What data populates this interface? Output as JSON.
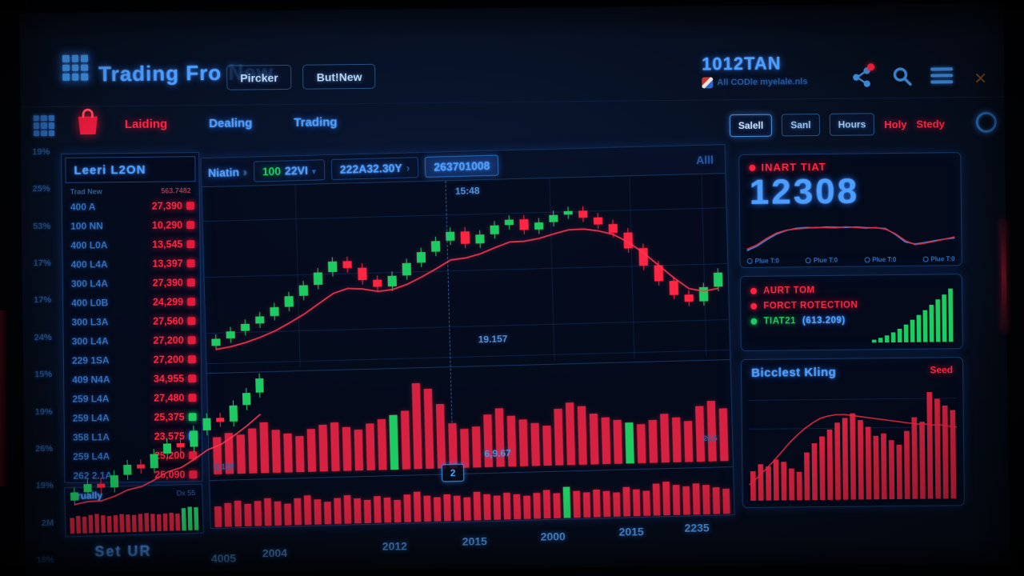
{
  "header": {
    "app_title": "Trading Fro New",
    "buttons": [
      "Pircker",
      "But!New"
    ],
    "account_id": "1012TAN",
    "account_sub": "All CODle myelale.nls",
    "icons": [
      "share-icon",
      "search-icon",
      "menu-icon",
      "close-icon"
    ]
  },
  "nav": {
    "tabs": [
      {
        "label": "Laiding",
        "active": true
      },
      {
        "label": "Dealing",
        "active": false
      },
      {
        "label": "Trading",
        "active": false
      }
    ],
    "range_buttons": [
      {
        "label": "Salell",
        "style": "boxed",
        "selected": true
      },
      {
        "label": "Sanl",
        "style": "boxed",
        "selected": false
      },
      {
        "label": "Hours",
        "style": "boxed",
        "selected": false
      },
      {
        "label": "Holy",
        "style": "text-red",
        "selected": false
      },
      {
        "label": "Stedy",
        "style": "text-red",
        "selected": false
      }
    ]
  },
  "left_axis_labels": [
    "19%",
    "25%",
    "53%",
    "17%",
    "17%",
    "24%",
    "15%",
    "19%",
    "26%",
    "19%",
    "2M",
    "18%"
  ],
  "watchlist": {
    "title": "Leeri L2ON",
    "col_left": "Trad New",
    "col_right": "563.7482",
    "rows": [
      {
        "label": "400 A",
        "value": "27,390",
        "badge": "red"
      },
      {
        "label": "100 NN",
        "value": "10,290",
        "badge": "red"
      },
      {
        "label": "400 L0A",
        "value": "13,545",
        "badge": "red"
      },
      {
        "label": "400 L4A",
        "value": "13,397",
        "badge": "red"
      },
      {
        "label": "300 L4A",
        "value": "27,390",
        "badge": "red"
      },
      {
        "label": "400 L0B",
        "value": "24,299",
        "badge": "red"
      },
      {
        "label": "300 L3A",
        "value": "27,560",
        "badge": "red"
      },
      {
        "label": "300 L4A",
        "value": "27,200",
        "badge": "red"
      },
      {
        "label": "229 1SA",
        "value": "27,200",
        "badge": "red"
      },
      {
        "label": "409 N4A",
        "value": "34,955",
        "badge": "red"
      },
      {
        "label": "259 L4A",
        "value": "27,480",
        "badge": "red"
      },
      {
        "label": "259 L4A",
        "value": "25,375",
        "badge": "green"
      },
      {
        "label": "358 L1A",
        "value": "23,575",
        "badge": "blue"
      },
      {
        "label": "259 L4A",
        "value": "25,200",
        "badge": "red"
      },
      {
        "label": "262 2.1A",
        "value": "25,090",
        "badge": "red"
      }
    ],
    "footer_title": "Trually",
    "footer_right": "Dx 55",
    "bottom_label": "Set UR"
  },
  "toolbar": {
    "symbol": "Niatin",
    "timeframe_prefix": "100",
    "timeframe_rest": "22VI",
    "price": "222A32.30Y",
    "order_id": "263701008",
    "range": "Alll"
  },
  "chart_labels": {
    "time": "15:48",
    "price": "19.157",
    "mid_value": "6,9.67",
    "mid_left": "3.115",
    "mid_right": "26.5",
    "marker": "2"
  },
  "cards": {
    "inart": {
      "title": "INART TIAT",
      "value": "12308",
      "legend": [
        "Plue T:0",
        "Plue T:0",
        "Plue T:0",
        "Plue T:0"
      ]
    },
    "alerts": {
      "items": [
        {
          "label": "AURT TOM",
          "color": "red",
          "suffix": ""
        },
        {
          "label": "FORCT ROTECTION",
          "color": "red",
          "suffix": ""
        },
        {
          "label": "TIAT21",
          "color": "green",
          "suffix": "(613.209)"
        }
      ]
    },
    "kling": {
      "title": "Bicclest Kling",
      "tag": "Seed"
    }
  },
  "colors": {
    "accent_blue": "#3e8fe0",
    "bright_blue": "#5aa7ff",
    "red": "#ff2743",
    "green": "#1ecb63",
    "panel_border": "#16355f"
  },
  "chart_data": {
    "main_price": {
      "type": "candlestick",
      "closes": [
        16,
        20,
        24,
        28,
        33,
        39,
        45,
        52,
        58,
        54,
        47,
        43,
        49,
        56,
        62,
        68,
        73,
        66,
        71,
        76,
        79,
        73,
        77,
        81,
        83,
        79,
        75,
        70,
        61,
        51,
        42,
        34,
        30,
        38,
        46
      ],
      "ma": "ema-0.32",
      "ylim": [
        0,
        100
      ],
      "x_ticks": [
        "4005",
        "2004",
        "2012",
        "2015",
        "2000",
        "2015",
        "2235"
      ],
      "annotations": [
        "15:48",
        "19.157"
      ]
    },
    "main_mid_volume": {
      "type": "bar",
      "values": [
        38,
        42,
        40,
        46,
        52,
        44,
        40,
        37,
        44,
        48,
        50,
        45,
        42,
        48,
        52,
        56,
        60,
        88,
        82,
        66,
        46,
        40,
        42,
        54,
        60,
        52,
        48,
        44,
        41,
        58,
        64,
        60,
        52,
        48,
        45,
        42,
        40,
        44,
        50,
        46,
        42,
        57,
        62,
        54
      ],
      "green_indices": [
        15,
        35
      ]
    },
    "main_bottom_volume": {
      "type": "bar",
      "values": [
        48,
        55,
        60,
        52,
        58,
        64,
        56,
        50,
        62,
        68,
        58,
        52,
        60,
        66,
        58,
        54,
        62,
        58,
        52,
        64,
        70,
        60,
        56,
        62,
        58,
        54,
        66,
        60,
        56,
        62,
        58,
        54,
        60,
        66,
        58,
        72,
        62,
        58,
        64,
        60,
        56,
        68,
        62,
        58,
        74,
        78,
        70,
        66,
        72,
        68,
        62,
        58
      ],
      "green_indices": [
        35
      ]
    },
    "overlay_candles": {
      "type": "candlestick",
      "closes": [
        8,
        12,
        10,
        16,
        21,
        19,
        26,
        31,
        29,
        37,
        43,
        41,
        49,
        55,
        62
      ],
      "ma": "ema-0.32"
    },
    "inart_lines": {
      "type": "line",
      "series": [
        {
          "name": "blue",
          "color": "#3e8fe0",
          "values": [
            6,
            18,
            36,
            52,
            62,
            68,
            70,
            69,
            71,
            70,
            69,
            70,
            68,
            67,
            65,
            48,
            26,
            20,
            24,
            29,
            33,
            36
          ]
        },
        {
          "name": "red",
          "color": "#e22742",
          "values": [
            10,
            22,
            40,
            55,
            63,
            66,
            68,
            70,
            69,
            68,
            71,
            69,
            66,
            68,
            63,
            50,
            30,
            18,
            22,
            27,
            33,
            39
          ]
        }
      ],
      "ylim": [
        0,
        100
      ]
    },
    "aurt_bars": {
      "type": "bar",
      "values": [
        5,
        8,
        12,
        17,
        23,
        30,
        38,
        46,
        54,
        63,
        72,
        80,
        90
      ],
      "color": "#1ecb63"
    },
    "kling": {
      "type": "bar",
      "bars": [
        26,
        32,
        30,
        36,
        34,
        28,
        25,
        42,
        50,
        56,
        62,
        68,
        72,
        76,
        70,
        64,
        56,
        58,
        52,
        48,
        60,
        72,
        68,
        94,
        88,
        82,
        78
      ],
      "line": [
        14,
        20,
        27,
        34,
        42,
        50,
        57,
        63,
        68,
        72,
        74,
        75,
        75,
        74,
        73,
        72,
        71,
        70,
        69,
        68,
        67,
        66,
        66,
        65,
        65,
        64,
        63
      ],
      "line_color": "#e22742"
    },
    "trually": {
      "type": "bar",
      "values": [
        52,
        58,
        55,
        60,
        63,
        58,
        55,
        57,
        60,
        58,
        56,
        59,
        61,
        58,
        56,
        58,
        60,
        57,
        74,
        78,
        76
      ],
      "green_tail": 3
    }
  }
}
